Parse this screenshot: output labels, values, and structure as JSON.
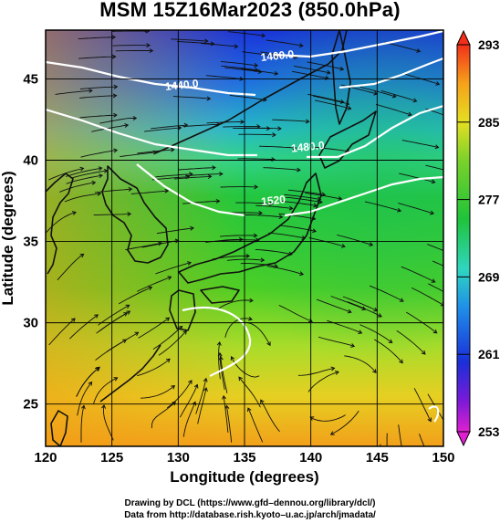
{
  "title": "MSM 15Z16Mar2023 (850.0hPa)",
  "map": {
    "x_axis": {
      "label": "Longitude (degrees)",
      "range": [
        120,
        150
      ],
      "ticks": [
        120,
        125,
        130,
        135,
        140,
        145,
        150
      ]
    },
    "y_axis": {
      "label": "Latitude  (degrees)",
      "range": [
        22.4,
        48
      ],
      "ticks": [
        25,
        30,
        35,
        40,
        45
      ]
    },
    "grid": true,
    "contours": [
      {
        "label": "1400.0",
        "lon": 137.5,
        "lat": 46.2
      },
      {
        "label": "1440.0",
        "lon": 130.3,
        "lat": 44.4
      },
      {
        "label": "1480.0",
        "lon": 139.8,
        "lat": 40.6
      },
      {
        "label": "1520",
        "lon": 137.2,
        "lat": 37.3
      }
    ]
  },
  "colorbar": {
    "ticks": [
      253,
      261,
      269,
      277,
      285,
      293
    ],
    "min": 253,
    "max": 293
  },
  "credits": {
    "drawing": "Drawing by DCL (https://www.gfd–dennou.org/library/dcl/)",
    "data": "Data from http://database.rish.kyoto–u.ac.jp/arch/jmadata/"
  }
}
